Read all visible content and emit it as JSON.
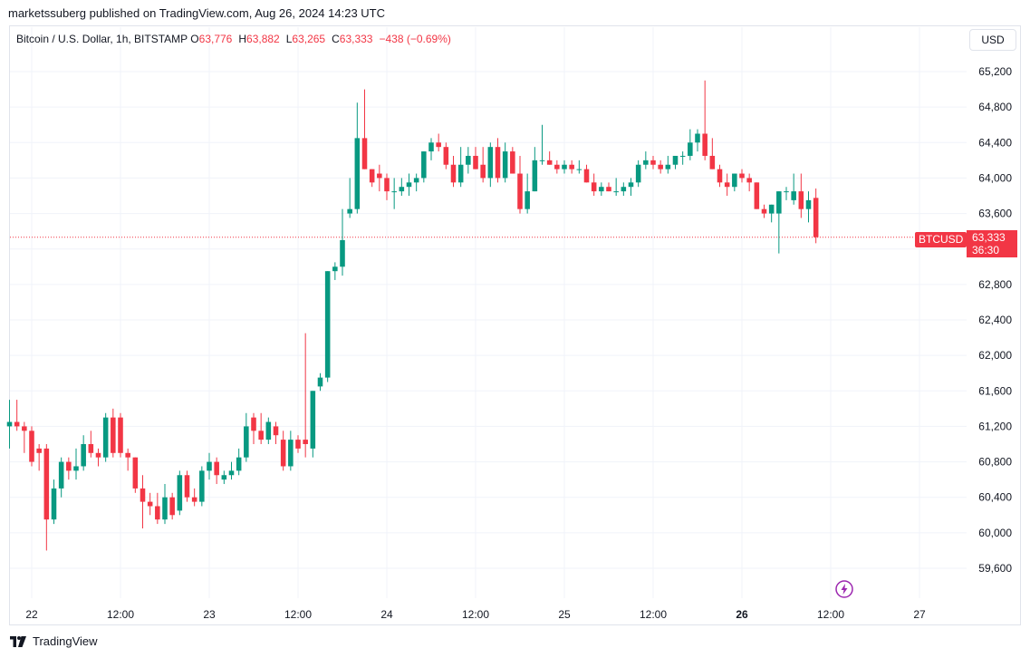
{
  "header": {
    "published_by": "marketssuberg published on TradingView.com, Aug 26, 2024 14:23 UTC"
  },
  "legend": {
    "symbol_text": "Bitcoin / U.S. Dollar, 1h, BITSTAMP",
    "o_label": "O",
    "o_value": "63,776",
    "h_label": "H",
    "h_value": "63,882",
    "l_label": "L",
    "l_value": "63,265",
    "c_label": "C",
    "c_value": "63,333",
    "change": "−438 (−0.69%)"
  },
  "currency_button": "USD",
  "price_badge": {
    "symbol": "BTCUSD",
    "price": "63,333",
    "countdown": "36:30"
  },
  "footer": {
    "brand": "TradingView"
  },
  "colors": {
    "up": "#089981",
    "down": "#f23645",
    "grid": "#f0f3fa"
  },
  "icons": {
    "footer_logo": "tradingview-logo-icon",
    "bolt": "lightning-bolt-icon"
  },
  "chart_data": {
    "type": "candlestick",
    "title": "Bitcoin / U.S. Dollar, 1h, BITSTAMP",
    "ylim": [
      59300,
      65500
    ],
    "y_ticks": [
      65200,
      64800,
      64400,
      64000,
      63600,
      63200,
      62800,
      62400,
      62000,
      61600,
      61200,
      60800,
      60400,
      60000,
      59600
    ],
    "y_tick_labels": [
      "65,200",
      "64,800",
      "64,400",
      "64,000",
      "63,600",
      "",
      "62,800",
      "62,400",
      "62,000",
      "61,600",
      "61,200",
      "60,800",
      "60,400",
      "60,000",
      "59,600"
    ],
    "x_ticks": [
      {
        "label": "22",
        "hour": 0,
        "bold": false
      },
      {
        "label": "12:00",
        "hour": 12,
        "bold": false
      },
      {
        "label": "23",
        "hour": 24,
        "bold": false
      },
      {
        "label": "12:00",
        "hour": 36,
        "bold": false
      },
      {
        "label": "24",
        "hour": 48,
        "bold": false
      },
      {
        "label": "12:00",
        "hour": 60,
        "bold": false
      },
      {
        "label": "25",
        "hour": 72,
        "bold": false
      },
      {
        "label": "12:00",
        "hour": 84,
        "bold": false
      },
      {
        "label": "26",
        "hour": 96,
        "bold": true
      },
      {
        "label": "12:00",
        "hour": 108,
        "bold": false
      },
      {
        "label": "27",
        "hour": 120,
        "bold": false
      }
    ],
    "start_hour": -3,
    "last_price": 63333,
    "ohlc": [
      [
        61200,
        61500,
        60950,
        61250
      ],
      [
        61250,
        61500,
        61150,
        61200
      ],
      [
        61200,
        61250,
        60900,
        61150
      ],
      [
        61150,
        61200,
        60750,
        60800
      ],
      [
        60950,
        61000,
        60700,
        60900
      ],
      [
        60950,
        61000,
        59800,
        60150
      ],
      [
        60150,
        60600,
        60100,
        60500
      ],
      [
        60500,
        60850,
        60400,
        60800
      ],
      [
        60800,
        60850,
        60600,
        60700
      ],
      [
        60700,
        60950,
        60600,
        60750
      ],
      [
        60750,
        61100,
        60700,
        61000
      ],
      [
        61000,
        61150,
        60850,
        60900
      ],
      [
        60900,
        60950,
        60750,
        60850
      ],
      [
        60850,
        61350,
        60800,
        61300
      ],
      [
        61300,
        61400,
        60850,
        60900
      ],
      [
        61300,
        61350,
        60850,
        60900
      ],
      [
        60900,
        60950,
        60700,
        60850
      ],
      [
        60850,
        60850,
        60450,
        60500
      ],
      [
        60500,
        60650,
        60050,
        60350
      ],
      [
        60350,
        60450,
        60200,
        60300
      ],
      [
        60300,
        60450,
        60100,
        60150
      ],
      [
        60150,
        60550,
        60100,
        60400
      ],
      [
        60400,
        60450,
        60150,
        60200
      ],
      [
        60250,
        60700,
        60200,
        60650
      ],
      [
        60650,
        60700,
        60350,
        60400
      ],
      [
        60400,
        60500,
        60300,
        60350
      ],
      [
        60350,
        60750,
        60300,
        60700
      ],
      [
        60700,
        60900,
        60600,
        60800
      ],
      [
        60800,
        60850,
        60550,
        60650
      ],
      [
        60600,
        60700,
        60550,
        60650
      ],
      [
        60650,
        60800,
        60600,
        60700
      ],
      [
        60700,
        60950,
        60650,
        60850
      ],
      [
        60850,
        61350,
        60800,
        61200
      ],
      [
        61300,
        61350,
        61000,
        61150
      ],
      [
        61150,
        61350,
        61000,
        61050
      ],
      [
        61050,
        61300,
        61000,
        61250
      ],
      [
        61200,
        61250,
        61000,
        61100
      ],
      [
        61050,
        61150,
        60700,
        60750
      ],
      [
        60750,
        61150,
        60700,
        61050
      ],
      [
        61050,
        61100,
        60900,
        60950
      ],
      [
        61050,
        62250,
        60850,
        61000
      ],
      [
        60950,
        61600,
        60850,
        61600
      ],
      [
        61650,
        61800,
        61600,
        61750
      ],
      [
        61750,
        62950,
        61700,
        62950
      ],
      [
        62950,
        63050,
        62850,
        63000
      ],
      [
        63000,
        63650,
        62900,
        63300
      ],
      [
        63600,
        64000,
        63550,
        63650
      ],
      [
        63650,
        64850,
        63600,
        64450
      ],
      [
        64450,
        65000,
        64100,
        64100
      ],
      [
        64100,
        64100,
        63900,
        63950
      ],
      [
        64050,
        64150,
        63850,
        64000
      ],
      [
        64000,
        64050,
        63750,
        63850
      ],
      [
        63850,
        64000,
        63650,
        63850
      ],
      [
        63850,
        64000,
        63800,
        63900
      ],
      [
        63900,
        64050,
        63800,
        63950
      ],
      [
        63950,
        64050,
        63850,
        64000
      ],
      [
        64000,
        64300,
        63950,
        64300
      ],
      [
        64300,
        64450,
        64200,
        64400
      ],
      [
        64400,
        64500,
        64300,
        64350
      ],
      [
        64350,
        64400,
        64100,
        64150
      ],
      [
        64150,
        64250,
        63900,
        63950
      ],
      [
        63950,
        64350,
        63900,
        64150
      ],
      [
        64150,
        64350,
        64050,
        64250
      ],
      [
        64250,
        64350,
        64100,
        64100
      ],
      [
        64150,
        64350,
        63950,
        64000
      ],
      [
        64000,
        64400,
        63900,
        64350
      ],
      [
        64350,
        64450,
        63950,
        64000
      ],
      [
        64000,
        64400,
        63950,
        64300
      ],
      [
        64300,
        64350,
        64050,
        64050
      ],
      [
        64050,
        64250,
        63600,
        63650
      ],
      [
        63650,
        64050,
        63600,
        63850
      ],
      [
        63850,
        64350,
        63850,
        64200
      ],
      [
        64200,
        64600,
        64150,
        64200
      ],
      [
        64200,
        64300,
        64150,
        64150
      ],
      [
        64150,
        64200,
        64050,
        64100
      ],
      [
        64100,
        64200,
        64050,
        64150
      ],
      [
        64150,
        64200,
        64050,
        64100
      ],
      [
        64100,
        64200,
        64050,
        64100
      ],
      [
        64100,
        64150,
        63950,
        63950
      ],
      [
        63950,
        64050,
        63800,
        63850
      ],
      [
        63850,
        63950,
        63800,
        63900
      ],
      [
        63900,
        63950,
        63850,
        63850
      ],
      [
        63850,
        64000,
        63800,
        63850
      ],
      [
        63850,
        63950,
        63800,
        63900
      ],
      [
        63900,
        64000,
        63800,
        63950
      ],
      [
        63950,
        64200,
        63900,
        64150
      ],
      [
        64150,
        64300,
        64100,
        64200
      ],
      [
        64200,
        64250,
        64100,
        64150
      ],
      [
        64150,
        64200,
        64050,
        64100
      ],
      [
        64100,
        64250,
        64050,
        64150
      ],
      [
        64150,
        64250,
        64100,
        64250
      ],
      [
        64250,
        64300,
        64150,
        64250
      ],
      [
        64250,
        64550,
        64200,
        64400
      ],
      [
        64400,
        64550,
        64300,
        64500
      ],
      [
        64500,
        65100,
        64200,
        64250
      ],
      [
        64250,
        64450,
        64100,
        64100
      ],
      [
        64100,
        64150,
        63900,
        63950
      ],
      [
        63950,
        64050,
        63800,
        63900
      ],
      [
        63900,
        64050,
        63850,
        64050
      ],
      [
        64050,
        64100,
        63950,
        64000
      ],
      [
        64000,
        64050,
        63850,
        63950
      ],
      [
        63950,
        63950,
        63650,
        63650
      ],
      [
        63650,
        63700,
        63550,
        63600
      ],
      [
        63600,
        63700,
        63500,
        63700
      ],
      [
        63600,
        63850,
        63150,
        63850
      ],
      [
        63850,
        63900,
        63750,
        63850
      ],
      [
        63750,
        64050,
        63700,
        63850
      ],
      [
        63850,
        64050,
        63550,
        63650
      ],
      [
        63650,
        63850,
        63500,
        63750
      ],
      [
        63776,
        63882,
        63265,
        63333
      ]
    ]
  }
}
